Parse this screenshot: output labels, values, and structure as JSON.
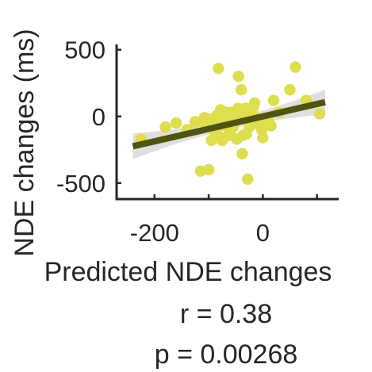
{
  "chart_data": {
    "type": "scatter",
    "xlabel": "Predicted NDE changes",
    "ylabel": "NDE changes (ms)",
    "xlim": [
      -270,
      140
    ],
    "ylim": [
      -620,
      540
    ],
    "xticks": [
      -200,
      0
    ],
    "xtick_labels": [
      "-200",
      "0"
    ],
    "yticks": [
      -500,
      0,
      500
    ],
    "ytick_labels": [
      "-500",
      "0",
      "500"
    ],
    "grid": false,
    "legend": "none",
    "colors": {
      "points": "#dede4f",
      "fit_line": "#4f5410",
      "confidence_band": "#dcdcdc",
      "axis": "#262626"
    },
    "points": {
      "x": [
        -225,
        -180,
        -160,
        -140,
        -125,
        -115,
        -110,
        -108,
        -105,
        -100,
        -98,
        -95,
        -92,
        -90,
        -88,
        -86,
        -85,
        -82,
        -80,
        -80,
        -78,
        -76,
        -75,
        -72,
        -70,
        -68,
        -66,
        -65,
        -62,
        -60,
        -60,
        -58,
        -56,
        -55,
        -52,
        -50,
        -50,
        -48,
        -46,
        -45,
        -42,
        -40,
        -40,
        -38,
        -36,
        -35,
        -32,
        -30,
        -30,
        -28,
        -25,
        -22,
        -20,
        -18,
        -15,
        -12,
        -10,
        -8,
        -5,
        -2,
        0,
        5,
        10,
        15,
        20,
        30,
        50,
        60,
        80,
        105
      ],
      "y": [
        -170,
        -80,
        -50,
        -100,
        -40,
        -410,
        -40,
        -10,
        -60,
        -400,
        -20,
        -180,
        -40,
        -100,
        -160,
        -120,
        5,
        360,
        20,
        -70,
        50,
        -50,
        -180,
        -160,
        -60,
        30,
        -30,
        -20,
        -100,
        30,
        -140,
        -60,
        20,
        -80,
        -30,
        -20,
        0,
        -170,
        60,
        300,
        40,
        200,
        -10,
        -280,
        -140,
        0,
        60,
        -130,
        10,
        -470,
        -80,
        -10,
        10,
        60,
        100,
        -50,
        -30,
        -20,
        -20,
        -100,
        -160,
        -60,
        -30,
        -70,
        120,
        30,
        200,
        370,
        120,
        20
      ]
    },
    "fit": {
      "x_range": [
        -240,
        115
      ],
      "slope": 0.934,
      "intercept": 0
    },
    "stats": {
      "r_text": "r = 0.38",
      "p_text": "p  = 0.00268"
    }
  }
}
